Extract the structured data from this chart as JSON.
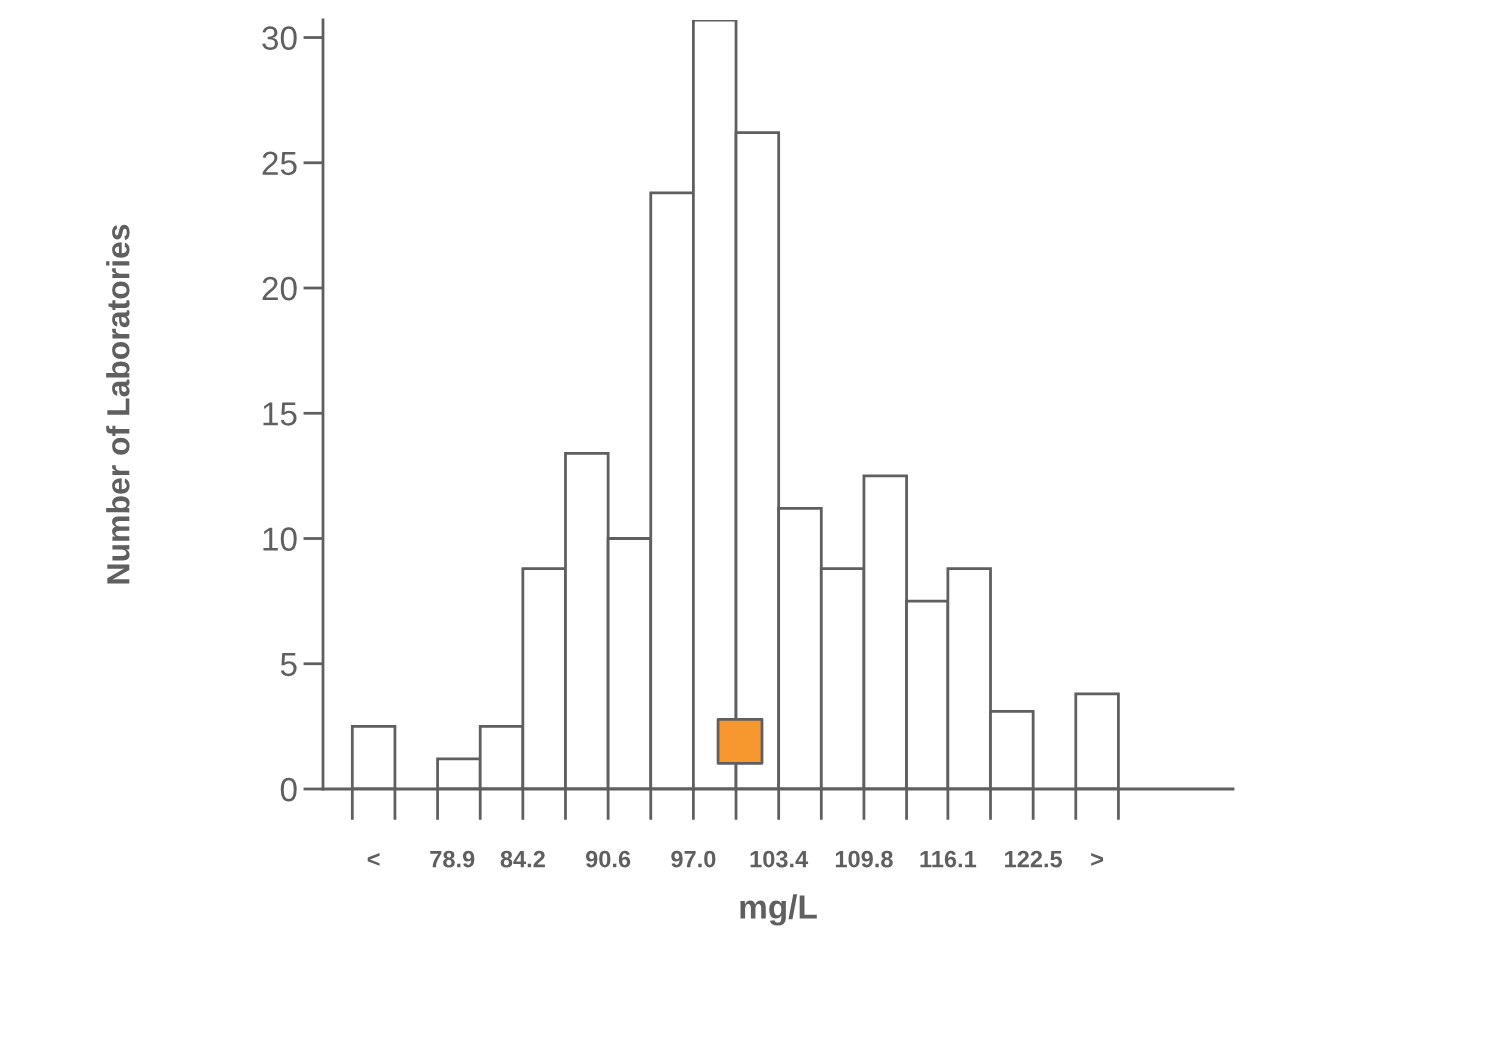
{
  "chart_data": {
    "type": "histogram",
    "xlabel": "mg/L",
    "ylabel": "Number of Laboratories",
    "bins": [
      71.4,
      74.6,
      77.8,
      81.0,
      84.2,
      87.4,
      90.6,
      93.8,
      97.0,
      100.2,
      103.4,
      106.6,
      109.8,
      113.0,
      116.1,
      119.3,
      122.5,
      125.7,
      128.9
    ],
    "values": [
      2.5,
      0,
      1.2,
      2.5,
      8.8,
      13.4,
      10,
      23.8,
      30.7,
      26.2,
      11.2,
      8.8,
      12.5,
      7.5,
      8.8,
      3.1,
      0,
      3.8
    ],
    "color": "#ffffff",
    "series": [
      {
        "type": "scatter",
        "x": [
          100.5
        ],
        "values": [
          1.9
        ],
        "color": "#f7982e",
        "marker": "square"
      }
    ],
    "xlim": [
      69.2,
      137.5
    ],
    "ylim": [
      0,
      30.7
    ],
    "xticks": [
      {
        "value": 73.0,
        "label": "<"
      },
      78.9,
      84.2,
      90.6,
      {
        "value": 97,
        "label": "97.0"
      },
      103.4,
      109.8,
      116.1,
      122.5,
      {
        "value": 127.3,
        "label": ">"
      }
    ],
    "yticks": [
      0,
      5,
      10,
      15,
      20,
      25,
      30
    ],
    "grid": false,
    "legend": false
  }
}
